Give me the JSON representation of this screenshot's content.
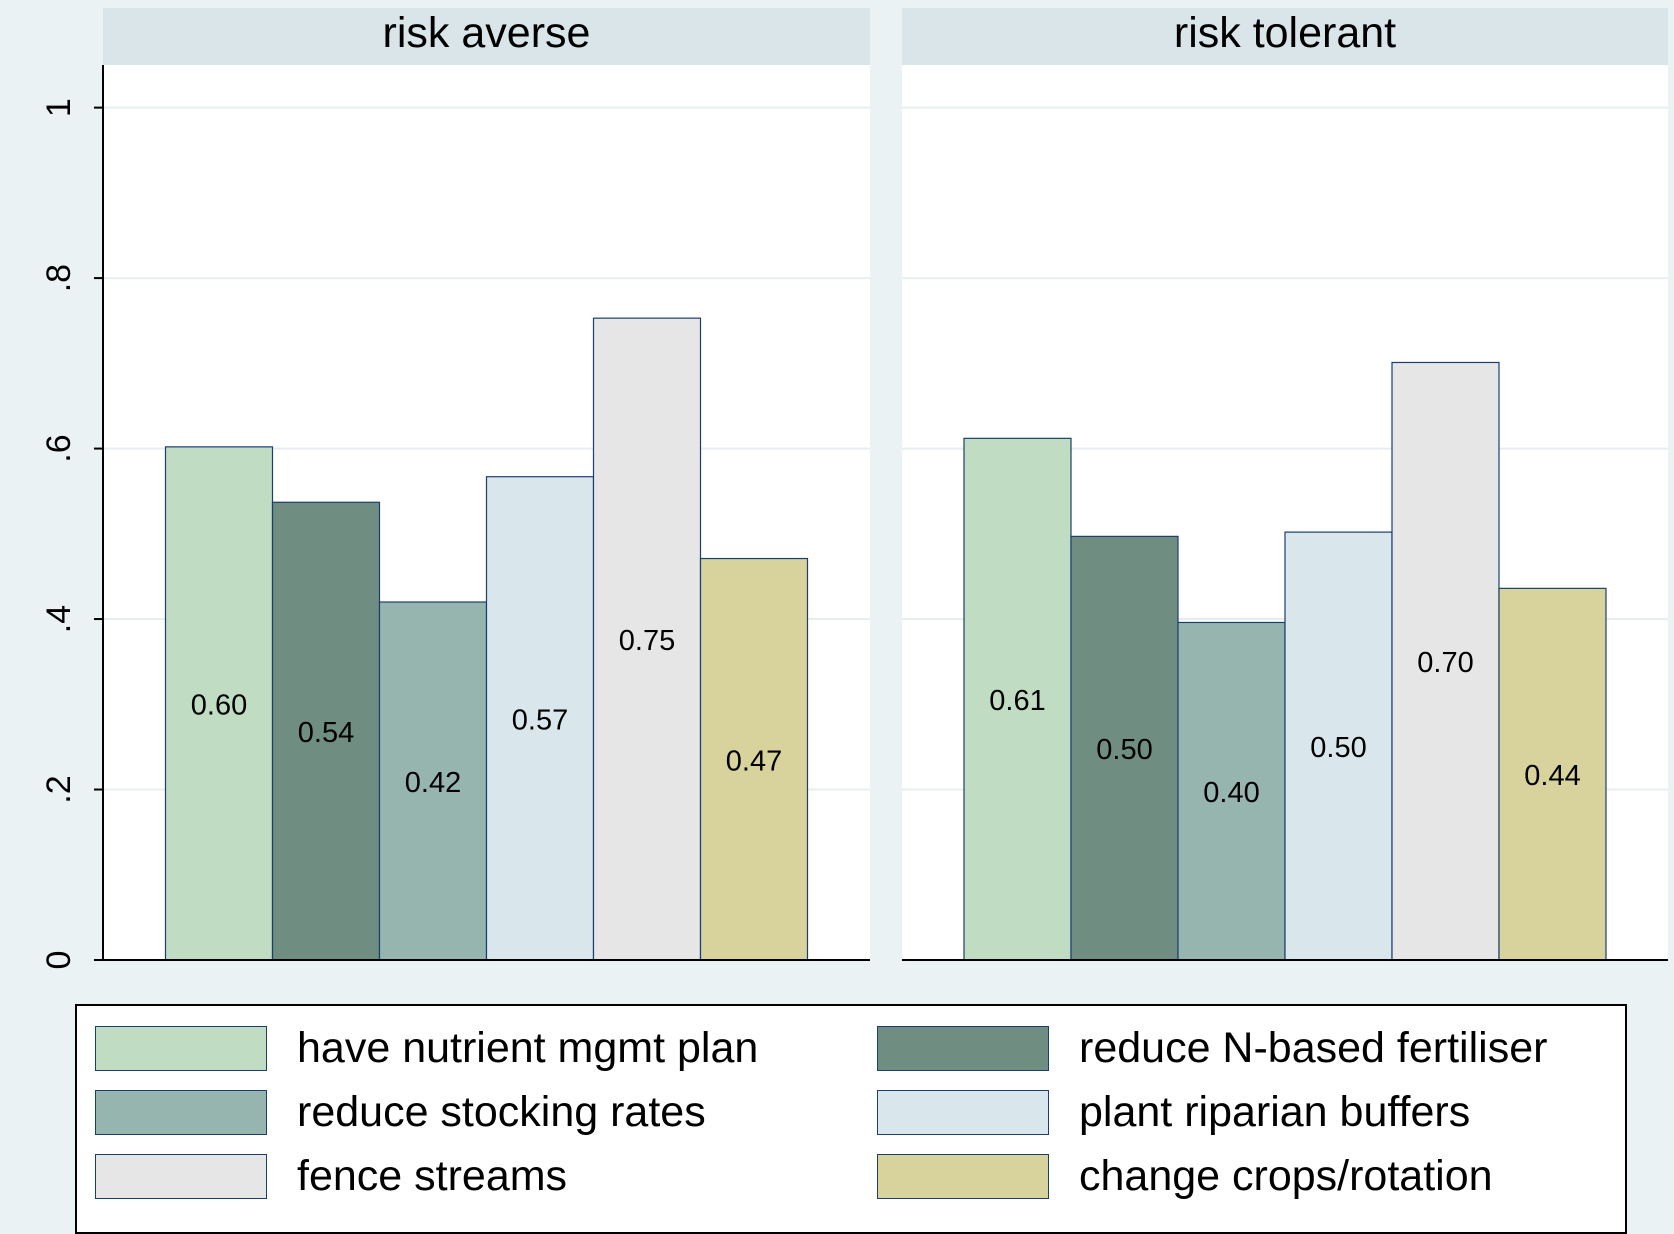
{
  "chart_data": {
    "type": "bar",
    "ylim": [
      0,
      1.05
    ],
    "yticks": [
      0,
      0.2,
      0.4,
      0.6,
      0.8,
      1
    ],
    "ytick_labels": [
      "0",
      ".2",
      ".4",
      ".6",
      ".8",
      "1"
    ],
    "grid": true,
    "legend_position": "bottom",
    "series": [
      {
        "name": "have nutrient mgmt plan",
        "color": "#c0dcc3"
      },
      {
        "name": "reduce N-based fertiliser",
        "color": "#6f8d81"
      },
      {
        "name": "reduce stocking rates",
        "color": "#96b5af"
      },
      {
        "name": "plant riparian buffers",
        "color": "#d9e6ec"
      },
      {
        "name": "fence streams",
        "color": "#e6e6e6"
      },
      {
        "name": "change crops/rotation",
        "color": "#d8d29c"
      }
    ],
    "panels": [
      {
        "title": "risk averse",
        "values": [
          0.602,
          0.537,
          0.42,
          0.567,
          0.753,
          0.471
        ],
        "labels": [
          "0.60",
          "0.54",
          "0.42",
          "0.57",
          "0.75",
          "0.47"
        ]
      },
      {
        "title": "risk tolerant",
        "values": [
          0.612,
          0.497,
          0.396,
          0.502,
          0.701,
          0.436
        ],
        "labels": [
          "0.61",
          "0.50",
          "0.40",
          "0.50",
          "0.70",
          "0.44"
        ]
      }
    ]
  },
  "colors": {
    "background": "#eaf2f3",
    "panel_header": "#d9e5e9",
    "plot_background": "#ffffff",
    "gridline": "#e8eef0",
    "bar_outline": "#1a3f6f"
  }
}
